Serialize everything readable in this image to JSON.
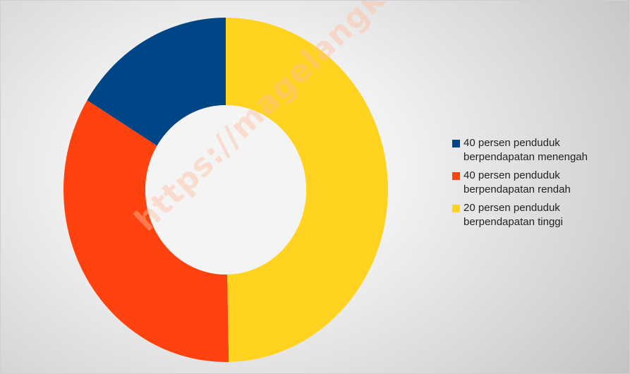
{
  "chart_data": {
    "type": "pie",
    "variant": "donut",
    "title": "",
    "slices": [
      {
        "label": "40 persen penduduk berpendapatan menengah",
        "value": 16.3,
        "color": "#004586"
      },
      {
        "label": "40 persen penduduk berpendapatan rendah",
        "value": 34.0,
        "color": "#ff420e"
      },
      {
        "label": "20 persen penduduk berpendapatan tinggi",
        "value": 49.7,
        "color": "#ffd320"
      }
    ],
    "legend": {
      "position": "right",
      "items": [
        {
          "line1": "40 persen penduduk",
          "line2": "berpendapatan menengah",
          "color": "#004586"
        },
        {
          "line1": "40 persen penduduk",
          "line2": "berpendapatan rendah",
          "color": "#ff420e"
        },
        {
          "line1": "20 persen penduduk",
          "line2": "berpendapatan tinggi",
          "color": "#ffd320"
        }
      ]
    }
  },
  "watermark": "https://magelangkota.bps.go.id"
}
